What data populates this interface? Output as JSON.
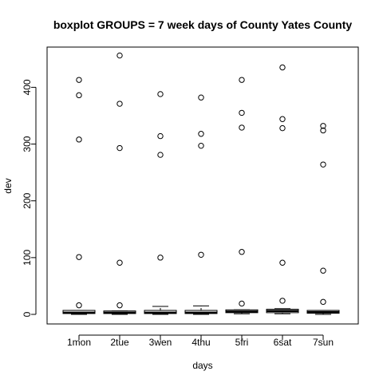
{
  "chart_data": {
    "type": "boxplot",
    "title": "boxplot GROUPS = 7 week days of County Yates County",
    "xlabel": "days",
    "ylabel": "dev",
    "ylim": [
      -17,
      478
    ],
    "yticks": [
      0,
      100,
      200,
      300,
      400
    ],
    "grid": false,
    "legend": "none",
    "categories": [
      "1mon",
      "2tue",
      "3wen",
      "4thu",
      "5fri",
      "6sat",
      "7sun"
    ],
    "boxes": [
      {
        "name": "1mon",
        "lower_whisker": 0,
        "q1": 1.5,
        "median": 3,
        "q3": 7,
        "upper_whisker": 7,
        "outliers": [
          16,
          101,
          308,
          386,
          413
        ]
      },
      {
        "name": "2tue",
        "lower_whisker": 0,
        "q1": 1.5,
        "median": 3,
        "q3": 6,
        "upper_whisker": 6,
        "outliers": [
          16,
          91,
          293,
          371,
          456
        ]
      },
      {
        "name": "3wen",
        "lower_whisker": 0,
        "q1": 1.5,
        "median": 3,
        "q3": 7,
        "upper_whisker": 14,
        "outliers": [
          100,
          281,
          314,
          388
        ]
      },
      {
        "name": "4thu",
        "lower_whisker": 0,
        "q1": 1.5,
        "median": 3,
        "q3": 7,
        "upper_whisker": 15,
        "outliers": [
          105,
          297,
          318,
          382
        ]
      },
      {
        "name": "5fri",
        "lower_whisker": 1,
        "q1": 3,
        "median": 5,
        "q3": 8,
        "upper_whisker": 8,
        "outliers": [
          19,
          110,
          329,
          355,
          413
        ]
      },
      {
        "name": "6sat",
        "lower_whisker": 1,
        "q1": 3,
        "median": 6,
        "q3": 9,
        "upper_whisker": 10,
        "outliers": [
          24,
          91,
          328,
          344,
          435
        ]
      },
      {
        "name": "7sun",
        "lower_whisker": 0,
        "q1": 2,
        "median": 4,
        "q3": 7,
        "upper_whisker": 7,
        "outliers": [
          22,
          77,
          264,
          324,
          332
        ]
      }
    ]
  }
}
